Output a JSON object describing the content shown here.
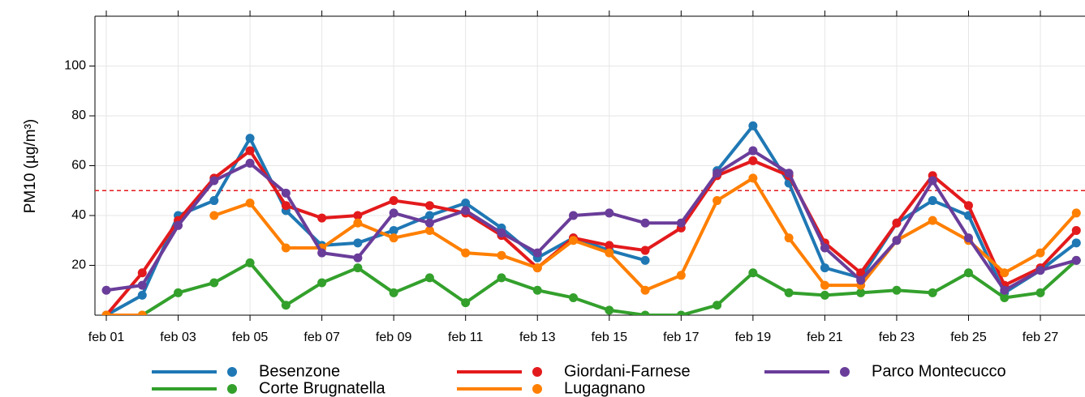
{
  "chart_data": {
    "type": "line",
    "ylabel": "PM10 (µg/m³)",
    "categories": [
      "feb 01",
      null,
      "feb 03",
      null,
      "feb 05",
      null,
      "feb 07",
      null,
      "feb 09",
      null,
      "feb 11",
      null,
      "feb 13",
      null,
      "feb 15",
      null,
      "feb 17",
      null,
      "feb 19",
      null,
      "feb 21",
      null,
      "feb 23",
      null,
      "feb 25",
      null,
      "feb 27",
      null
    ],
    "ylim": [
      0,
      120
    ],
    "yticks": [
      20,
      40,
      60,
      80,
      100
    ],
    "grid": true,
    "threshold": 50,
    "threshold_color": "#e31a1c",
    "legend": "bottom",
    "series": [
      {
        "name": "Besenzone",
        "color": "#1f78b4",
        "values": [
          0,
          8,
          40,
          46,
          71,
          42,
          28,
          29,
          34,
          40,
          45,
          35,
          23,
          31,
          26,
          22,
          null,
          58,
          76,
          53,
          19,
          15,
          37,
          46,
          40,
          9,
          18,
          29
        ]
      },
      {
        "name": "Corte Brugnatella",
        "color": "#33a02c",
        "values": [
          null,
          0,
          9,
          13,
          21,
          4,
          13,
          19,
          9,
          15,
          5,
          15,
          10,
          7,
          2,
          0,
          0,
          4,
          17,
          9,
          8,
          9,
          10,
          9,
          17,
          7,
          9,
          22
        ]
      },
      {
        "name": "Giordani-Farnese",
        "color": "#e31a1c",
        "values": [
          0,
          17,
          38,
          55,
          66,
          44,
          39,
          40,
          46,
          44,
          41,
          32,
          19,
          31,
          28,
          26,
          35,
          56,
          62,
          56,
          29,
          17,
          37,
          56,
          44,
          12,
          19,
          34
        ]
      },
      {
        "name": "Lugagnano",
        "color": "#ff7f00",
        "values": [
          0,
          0,
          null,
          40,
          45,
          27,
          27,
          37,
          31,
          34,
          25,
          24,
          19,
          30,
          25,
          10,
          16,
          46,
          55,
          31,
          12,
          12,
          30,
          38,
          30,
          17,
          25,
          41
        ]
      },
      {
        "name": "Parco Montecucco",
        "color": "#6a3d9a",
        "values": [
          10,
          12,
          36,
          54,
          61,
          49,
          25,
          23,
          41,
          37,
          42,
          33,
          25,
          40,
          41,
          37,
          37,
          57,
          66,
          57,
          27,
          14,
          30,
          54,
          31,
          10,
          18,
          22
        ]
      }
    ]
  }
}
